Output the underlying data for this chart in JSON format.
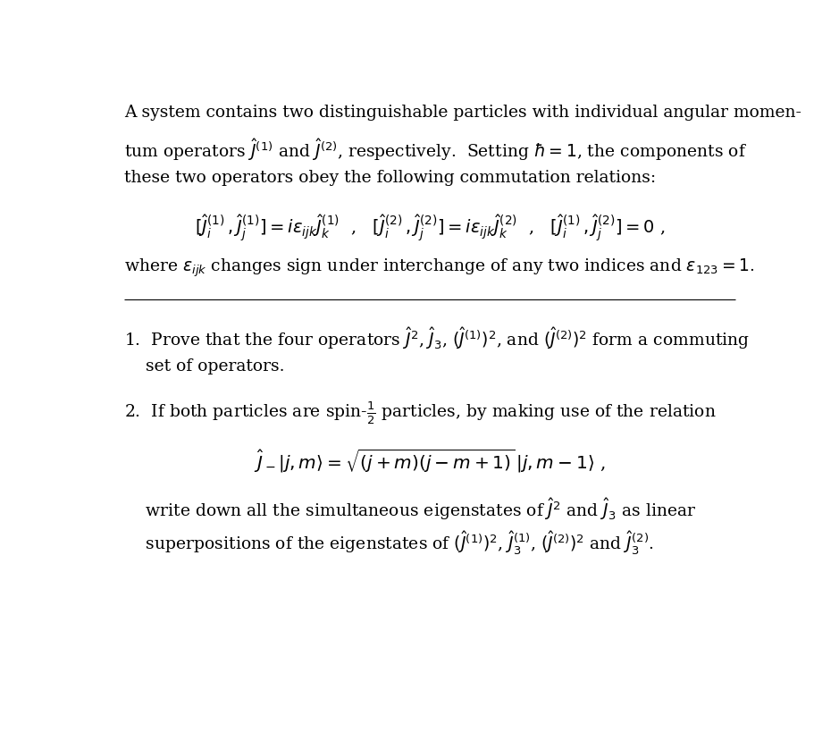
{
  "background_color": "#ffffff",
  "text_color": "#000000",
  "figsize": [
    9.39,
    8.38
  ],
  "dpi": 100,
  "font_size_main": 13.5,
  "font_size_eq": 14.0,
  "line1": "A system contains two distinguishable particles with individual angular momen-",
  "line2": "tum operators $\\hat{J}^{(1)}$ and $\\hat{J}^{(2)}$, respectively.  Setting $\\hbar = 1$, the components of",
  "line3": "these two operators obey the following commutation relations:",
  "eq1": "$[\\hat{J}^{(1)}_i\\,,\\hat{J}^{(1)}_j] = i\\epsilon_{ijk}\\hat{J}^{(1)}_k$  ,   $[\\hat{J}^{(2)}_i\\,,\\hat{J}^{(2)}_j] = i\\epsilon_{ijk}\\hat{J}^{(2)}_k$  ,   $[\\hat{J}^{(1)}_i\\,,\\hat{J}^{(2)}_j] = 0$ ,",
  "para2": "where $\\epsilon_{ijk}$ changes sign under interchange of any two indices and $\\epsilon_{123} = 1$.",
  "item1a": "1.  Prove that the four operators $\\hat{J}^2$, $\\hat{J}_3$, $(\\hat{J}^{(1)})^2$, and $(\\hat{J}^{(2)})^2$ form a commuting",
  "item1b": "    set of operators.",
  "item2a": "2.  If both particles are spin-$\\frac{1}{2}$ particles, by making use of the relation",
  "eq2": "$\\hat{J}_-|j,m\\rangle = \\sqrt{(j+m)(j-m+1)}\\,|j,m-1\\rangle$ ,",
  "item2b": "    write down all the simultaneous eigenstates of $\\hat{J}^2$ and $\\hat{J}_3$ as linear",
  "item2c": "    superpositions of the eigenstates of $(\\hat{J}^{(1)})^2$, $\\hat{J}^{(1)}_3$, $(\\hat{J}^{(2)})^2$ and $\\hat{J}^{(2)}_3$."
}
